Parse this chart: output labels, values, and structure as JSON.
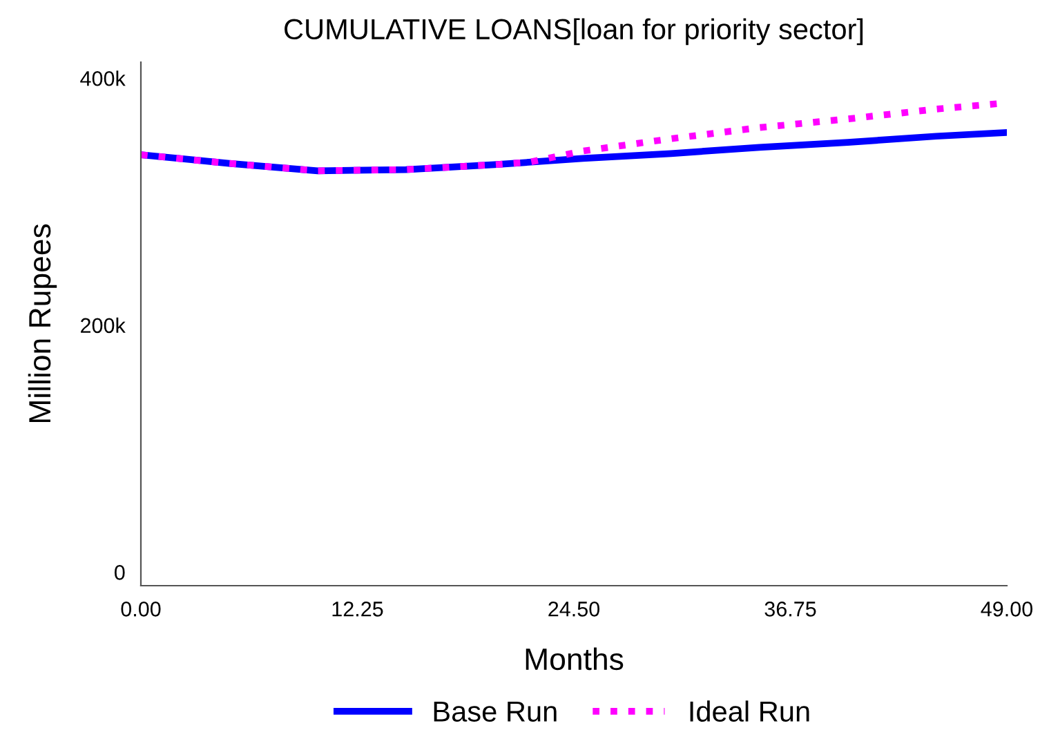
{
  "chart_data": {
    "type": "line",
    "title": "CUMULATIVE LOANS[loan for priority sector]",
    "xlabel": "Months",
    "ylabel": "Million Rupees",
    "xlim": [
      0,
      49
    ],
    "xticks": [
      {
        "value": 0,
        "label": "0.00"
      },
      {
        "value": 12.25,
        "label": "12.25"
      },
      {
        "value": 24.5,
        "label": "24.50"
      },
      {
        "value": 36.75,
        "label": "36.75"
      },
      {
        "value": 49,
        "label": "49.00"
      }
    ],
    "ylim": [
      -11000,
      413000
    ],
    "yticks": [
      {
        "value": 0,
        "label": "0"
      },
      {
        "value": 200000,
        "label": "200k"
      },
      {
        "value": 400000,
        "label": "400k"
      }
    ],
    "grid": false,
    "legend": "bottom",
    "series": [
      {
        "name": "Base Run",
        "color": "#0000ff",
        "line_style": "solid",
        "x": [
          0,
          5,
          10,
          15,
          20,
          25,
          30,
          35,
          40,
          45,
          49
        ],
        "values": [
          338000,
          331000,
          325000,
          326000,
          330000,
          335000,
          339000,
          344000,
          348000,
          353000,
          356000
        ]
      },
      {
        "name": "Ideal Run",
        "color": "#ff00ff",
        "line_style": "dotted",
        "x": [
          0,
          5,
          10,
          15,
          20,
          22,
          25,
          30,
          35,
          40,
          45,
          49
        ],
        "values": [
          338000,
          331000,
          325000,
          326000,
          330000,
          332000,
          341000,
          351000,
          360000,
          367000,
          375000,
          380000
        ]
      }
    ]
  }
}
